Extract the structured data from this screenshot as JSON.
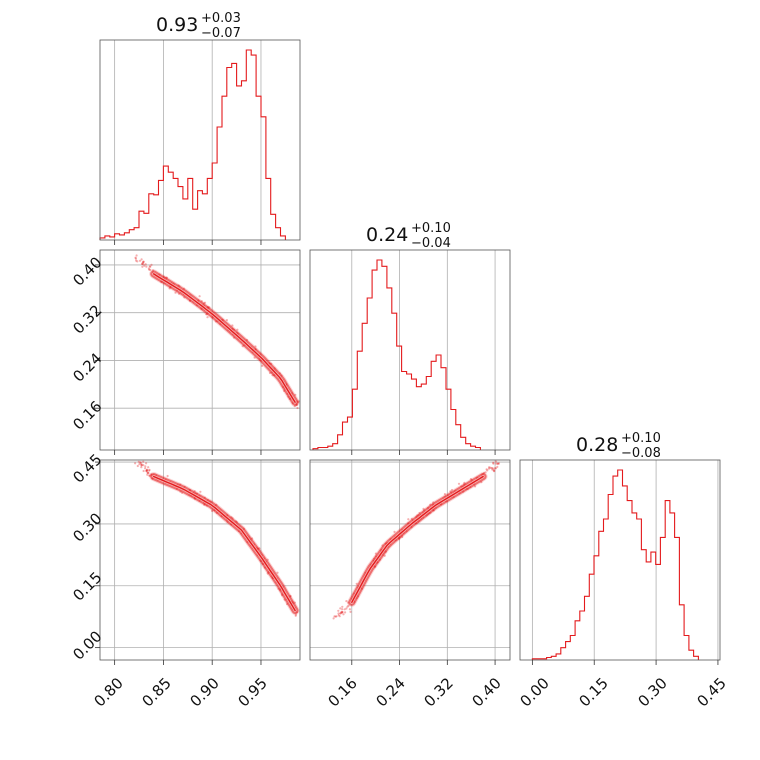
{
  "chart_data": {
    "type": "corner",
    "color": "#e41a1c",
    "grid": true,
    "params": [
      {
        "title_main": "0.93",
        "title_plus": "+0.03",
        "title_minus": "−0.07",
        "range": [
          0.785,
          0.99
        ]
      },
      {
        "title_main": "0.24",
        "title_plus": "+0.10",
        "title_minus": "−0.04",
        "range": [
          0.09,
          0.425
        ]
      },
      {
        "title_main": "0.28",
        "title_plus": "+0.10",
        "title_minus": "−0.08",
        "range": [
          -0.03,
          0.455
        ]
      }
    ],
    "tick_labels": {
      "p0": [
        "0.80",
        "0.85",
        "0.90",
        "0.95"
      ],
      "p1": [
        "0.16",
        "0.24",
        "0.32",
        "0.40"
      ],
      "p2": [
        "0.00",
        "0.15",
        "0.30",
        "0.45"
      ]
    },
    "hist_p0": {
      "edges_start": 0.785,
      "bin_width": 0.005,
      "counts": [
        2,
        4,
        3,
        6,
        5,
        7,
        10,
        12,
        28,
        26,
        45,
        44,
        58,
        72,
        66,
        60,
        52,
        40,
        60,
        30,
        48,
        45,
        60,
        75,
        110,
        140,
        168,
        172,
        150,
        155,
        185,
        180,
        140,
        120,
        60,
        25,
        12,
        4
      ]
    },
    "hist_p1": {
      "edges_start": 0.095,
      "bin_width": 0.00825,
      "counts": [
        1,
        2,
        2,
        3,
        5,
        12,
        22,
        26,
        48,
        78,
        100,
        120,
        142,
        150,
        145,
        128,
        108,
        82,
        62,
        60,
        56,
        50,
        52,
        58,
        70,
        75,
        65,
        48,
        32,
        20,
        10,
        5,
        3,
        2
      ]
    },
    "hist_p2": {
      "edges_start": 0.0,
      "bin_width": 0.0115,
      "counts": [
        1,
        1,
        1,
        2,
        3,
        5,
        10,
        15,
        20,
        32,
        40,
        52,
        70,
        85,
        105,
        115,
        135,
        150,
        155,
        142,
        130,
        120,
        115,
        90,
        80,
        88,
        78,
        100,
        130,
        120,
        100,
        45,
        20,
        8,
        3
      ]
    },
    "pair_01": {
      "x": [
        0.84,
        0.87,
        0.9,
        0.93,
        0.95,
        0.97,
        0.985
      ],
      "y": [
        0.385,
        0.355,
        0.318,
        0.275,
        0.245,
        0.21,
        0.17
      ]
    },
    "pair_02": {
      "x": [
        0.84,
        0.87,
        0.9,
        0.93,
        0.95,
        0.97,
        0.985
      ],
      "y": [
        0.415,
        0.385,
        0.345,
        0.285,
        0.22,
        0.15,
        0.09
      ]
    },
    "pair_12": {
      "x": [
        0.16,
        0.19,
        0.22,
        0.26,
        0.3,
        0.34,
        0.38
      ],
      "y": [
        0.11,
        0.19,
        0.25,
        0.3,
        0.345,
        0.38,
        0.415
      ]
    }
  }
}
